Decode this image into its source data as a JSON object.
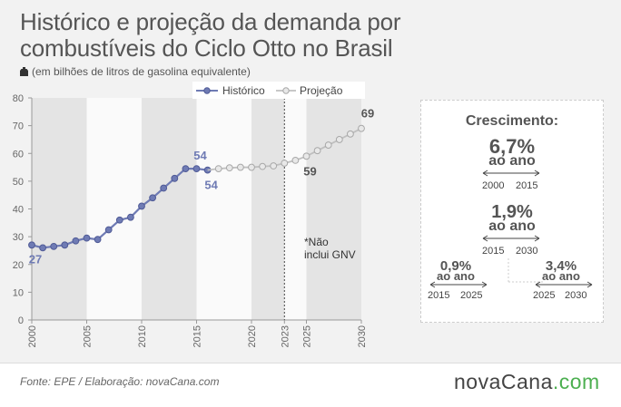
{
  "title": "Histórico e projeção da demanda por combustíveis do Ciclo Otto no Brasil",
  "subtitle": "(em bilhões de litros de gasolina equivalente)",
  "icons": {
    "unit": "fuel-drop-icon"
  },
  "colors": {
    "historico": "#6f7bb4",
    "projecao": "#b3b3b3",
    "band": "#e4e4e4",
    "accent_green": "#4caf50"
  },
  "note": {
    "line1": "*Não",
    "line2": "inclui GNV"
  },
  "chart_data": {
    "type": "line",
    "title": "Histórico e projeção da demanda por combustíveis do Ciclo Otto no Brasil",
    "ylabel": "",
    "xlabel": "",
    "ylim": [
      0,
      80
    ],
    "yticks": [
      0,
      10,
      20,
      30,
      40,
      50,
      60,
      70,
      80
    ],
    "xticks": [
      "2000",
      "2005",
      "2010",
      "2015",
      "2020",
      "2023",
      "2025",
      "2030"
    ],
    "xlim": [
      2000,
      2030
    ],
    "grid": false,
    "legend": "top",
    "series": [
      {
        "name": "Histórico",
        "x": [
          2000,
          2001,
          2002,
          2003,
          2004,
          2005,
          2006,
          2007,
          2008,
          2009,
          2010,
          2011,
          2012,
          2013,
          2014,
          2015,
          2016
        ],
        "values": [
          27,
          26,
          26.5,
          27,
          28.5,
          29.5,
          29,
          32.5,
          36,
          37,
          41,
          44,
          47.5,
          51,
          54.5,
          54.5,
          54
        ]
      },
      {
        "name": "Projeção",
        "x": [
          2016,
          2017,
          2018,
          2019,
          2020,
          2021,
          2022,
          2023,
          2024,
          2025,
          2026,
          2027,
          2028,
          2029,
          2030
        ],
        "values": [
          54,
          54.5,
          54.8,
          55,
          55,
          55.3,
          55.5,
          56.5,
          57.5,
          59,
          61,
          63,
          65,
          67,
          69
        ]
      }
    ],
    "data_labels": [
      {
        "x": 2000,
        "y": 27,
        "text": "27",
        "series": "Histórico",
        "pos": "below"
      },
      {
        "x": 2015,
        "y": 54.5,
        "text": "54",
        "series": "Histórico",
        "pos": "above"
      },
      {
        "x": 2016,
        "y": 54,
        "text": "54",
        "series": "Histórico",
        "pos": "below-right"
      },
      {
        "x": 2025,
        "y": 59,
        "text": "59",
        "series": "Projeção",
        "pos": "below-right"
      },
      {
        "x": 2030,
        "y": 69,
        "text": "69",
        "series": "Projeção",
        "pos": "above-right"
      }
    ],
    "bands": [
      [
        2000,
        2005
      ],
      [
        2010,
        2015
      ],
      [
        2020,
        2023
      ],
      [
        2025,
        2030
      ]
    ],
    "divider_year": 2023
  },
  "growth": {
    "title": "Crescimento:",
    "items": [
      {
        "pct": "6,7%",
        "label": "ao ano",
        "from": "2000",
        "to": "2015"
      },
      {
        "pct": "1,9%",
        "label": "ao ano",
        "from": "2015",
        "to": "2030"
      },
      {
        "pct": "0,9%",
        "label": "ao ano",
        "from": "2015",
        "to": "2025"
      },
      {
        "pct": "3,4%",
        "label": "ao ano",
        "from": "2025",
        "to": "2030"
      }
    ]
  },
  "footer": {
    "source": "Fonte: EPE / Elaboração: novaCana.com",
    "logo_main": "novaCana",
    "logo_suffix": ".com"
  }
}
